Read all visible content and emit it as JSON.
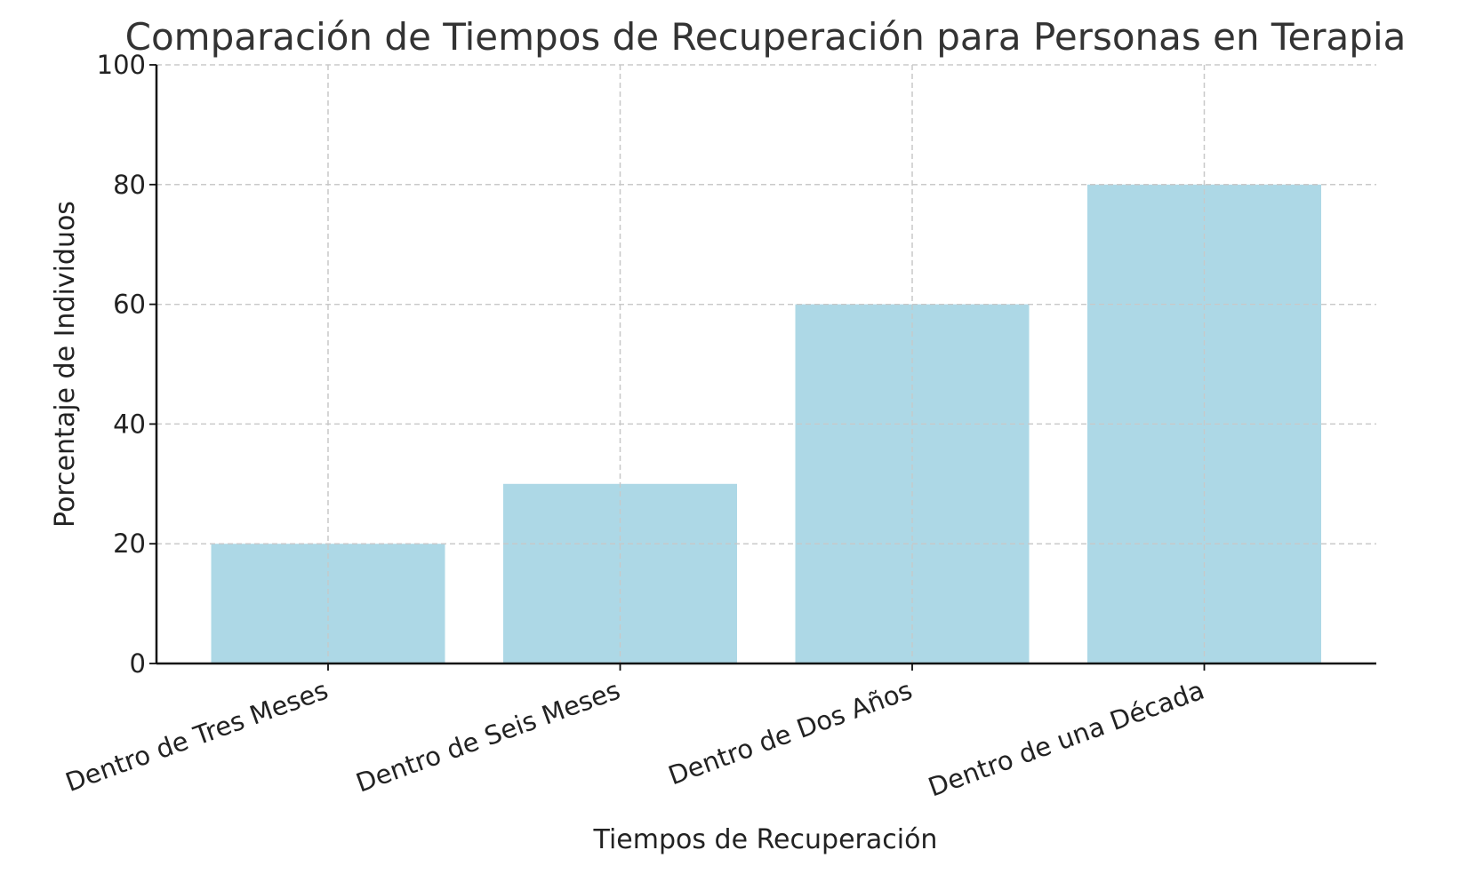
{
  "chart_data": {
    "type": "bar",
    "title": "Comparación de Tiempos de Recuperación para Personas en Terapia",
    "xlabel": "Tiempos de Recuperación",
    "ylabel": "Porcentaje de Individuos",
    "categories": [
      "Dentro de Tres Meses",
      "Dentro de Seis Meses",
      "Dentro de Dos Años",
      "Dentro de una Década"
    ],
    "values": [
      20,
      30,
      60,
      80
    ],
    "ylim": [
      0,
      100
    ],
    "yticks": [
      "0",
      "20",
      "40",
      "60",
      "80",
      "100"
    ],
    "grid": true,
    "legend": "none",
    "bar_color": "#add8e6"
  }
}
